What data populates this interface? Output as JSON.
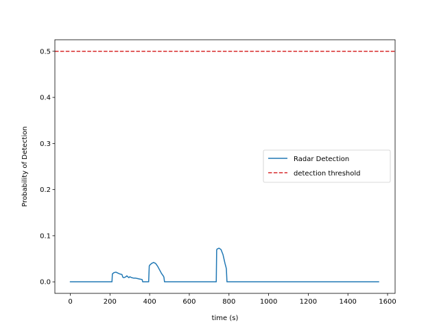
{
  "chart_data": {
    "type": "line",
    "title": "",
    "xlabel": "time (s)",
    "ylabel": "Probability of Detection",
    "xlim": [
      -78,
      1638
    ],
    "ylim": [
      -0.025,
      0.525
    ],
    "xticks": [
      0,
      200,
      400,
      600,
      800,
      1000,
      1200,
      1400,
      1600
    ],
    "xtick_labels": [
      "0",
      "200",
      "400",
      "600",
      "800",
      "1000",
      "1200",
      "1400",
      "1600"
    ],
    "yticks": [
      0.0,
      0.1,
      0.2,
      0.3,
      0.4,
      0.5
    ],
    "ytick_labels": [
      "0.0",
      "0.1",
      "0.2",
      "0.3",
      "0.4",
      "0.5"
    ],
    "grid": false,
    "legend": {
      "placement": "center-right",
      "entries": [
        "Radar Detection",
        "detection threshold"
      ]
    },
    "series": [
      {
        "name": "Radar Detection",
        "color": "#1f77b4",
        "style": "solid",
        "x": [
          0,
          210,
          212,
          220,
          230,
          240,
          250,
          260,
          265,
          270,
          280,
          285,
          290,
          295,
          300,
          310,
          320,
          330,
          340,
          350,
          362,
          365,
          380,
          395,
          398,
          400,
          410,
          420,
          430,
          440,
          450,
          460,
          470,
          472,
          475,
          480,
          500,
          600,
          700,
          736,
          738,
          740,
          750,
          760,
          770,
          780,
          785,
          787,
          790,
          800,
          900,
          1000,
          1100,
          1200,
          1300,
          1400,
          1500,
          1555
        ],
        "y": [
          0,
          0,
          0.017,
          0.02,
          0.021,
          0.019,
          0.017,
          0.016,
          0.01,
          0.009,
          0.011,
          0.013,
          0.011,
          0.009,
          0.011,
          0.009,
          0.008,
          0.008,
          0.007,
          0.006,
          0.005,
          0.0,
          0.0,
          0.0,
          0.034,
          0.036,
          0.04,
          0.042,
          0.04,
          0.034,
          0.026,
          0.018,
          0.012,
          0.01,
          0.0,
          0.0,
          0.0,
          0.0,
          0.0,
          0.0,
          0.069,
          0.071,
          0.073,
          0.07,
          0.059,
          0.04,
          0.032,
          0.028,
          0.0,
          0.0,
          0.0,
          0.0,
          0.0,
          0.0,
          0.0,
          0.0,
          0.0,
          0.0
        ]
      },
      {
        "name": "detection threshold",
        "color": "#d62728",
        "style": "dashed",
        "type": "hline",
        "y": 0.5
      }
    ]
  }
}
